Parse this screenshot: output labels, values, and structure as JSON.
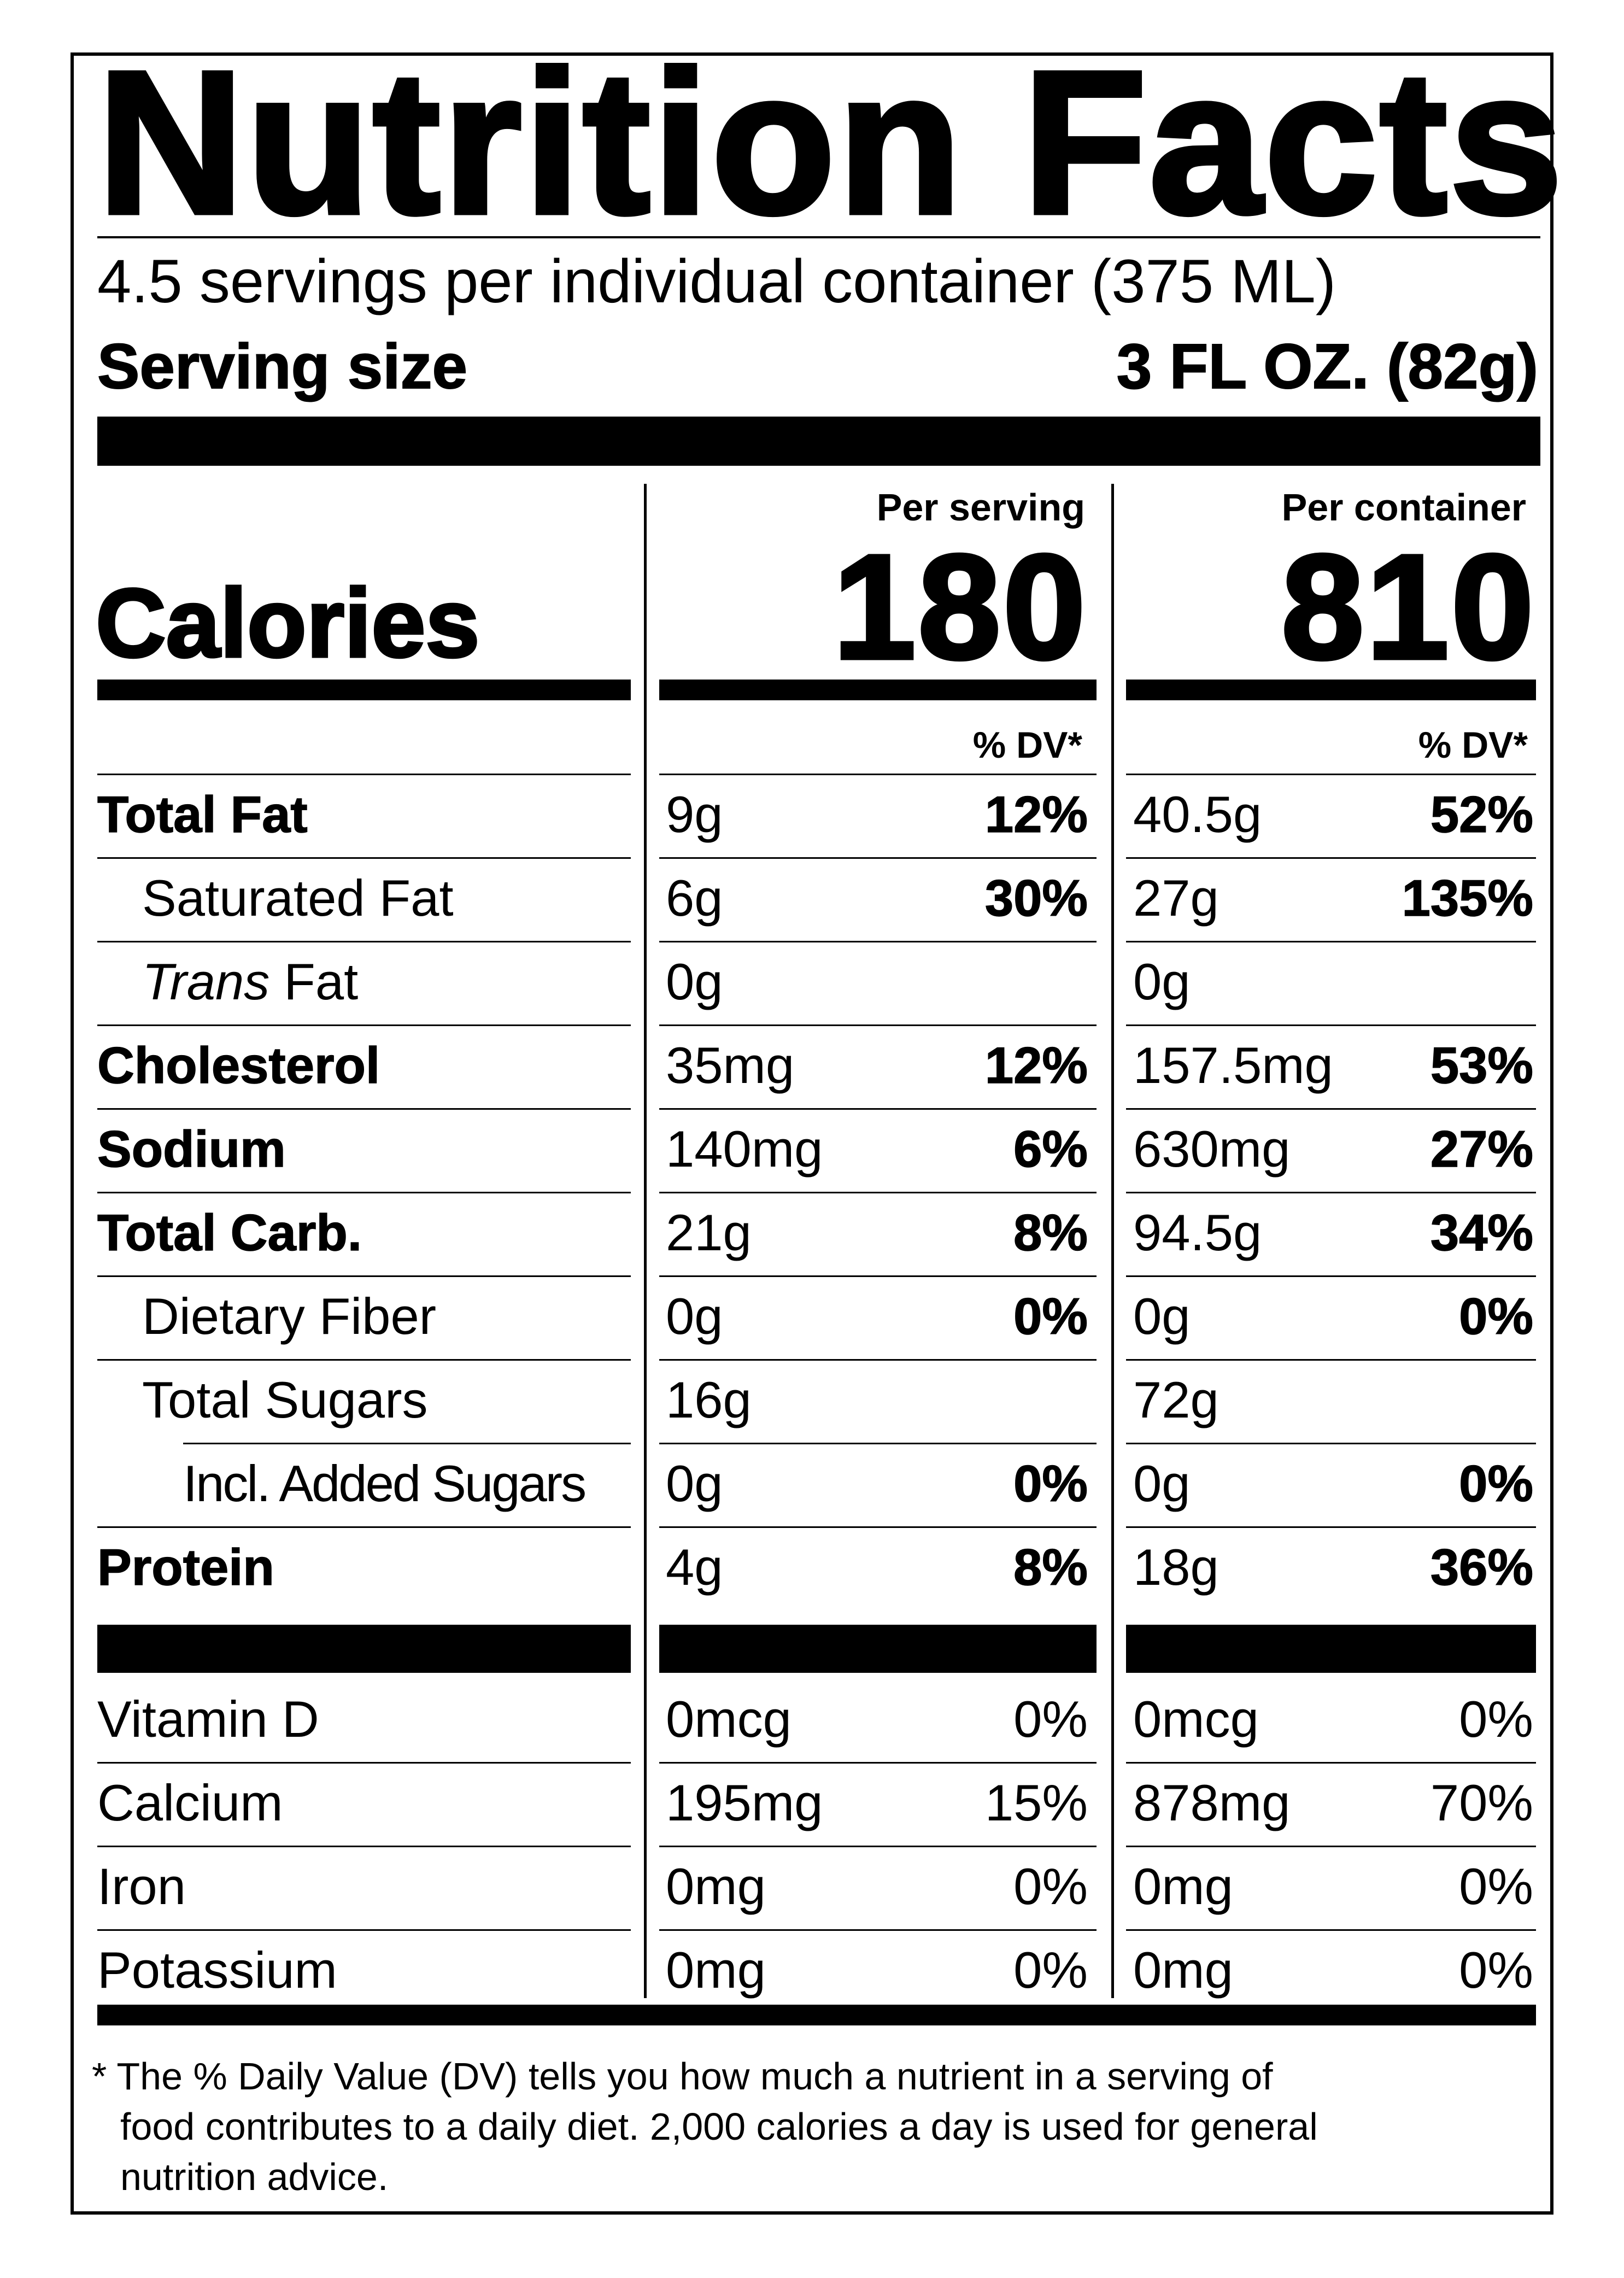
{
  "title": "Nutrition Facts",
  "servings_text": "4.5 servings per individual container (375 ML)",
  "serving_size": {
    "label": "Serving size",
    "value": "3 FL OZ. (82g)"
  },
  "columns": {
    "per_serving": {
      "heading": "Per serving",
      "calories": "180",
      "dv_heading": "% DV*"
    },
    "per_container": {
      "heading": "Per container",
      "calories": "810",
      "dv_heading": "% DV*"
    }
  },
  "calories_label": "Calories",
  "nutrients": [
    {
      "label": "Total Fat",
      "style": "bold",
      "indent": 0,
      "serving_amount": "9g",
      "serving_dv": "12%",
      "container_amount": "40.5g",
      "container_dv": "52%"
    },
    {
      "label": "Saturated Fat",
      "style": "normal",
      "indent": 1,
      "serving_amount": "6g",
      "serving_dv": "30%",
      "container_amount": "27g",
      "container_dv": "135%"
    },
    {
      "label_italic": "Trans",
      "label_rest": " Fat",
      "style": "normal",
      "indent": 1,
      "serving_amount": "0g",
      "serving_dv": "",
      "container_amount": "0g",
      "container_dv": ""
    },
    {
      "label": "Cholesterol",
      "style": "bold",
      "indent": 0,
      "serving_amount": "35mg",
      "serving_dv": "12%",
      "container_amount": "157.5mg",
      "container_dv": "53%"
    },
    {
      "label": "Sodium",
      "style": "bold",
      "indent": 0,
      "serving_amount": "140mg",
      "serving_dv": "6%",
      "container_amount": "630mg",
      "container_dv": "27%"
    },
    {
      "label": "Total Carb.",
      "style": "bold",
      "indent": 0,
      "serving_amount": "21g",
      "serving_dv": "8%",
      "container_amount": "94.5g",
      "container_dv": "34%"
    },
    {
      "label": "Dietary Fiber",
      "style": "normal",
      "indent": 1,
      "serving_amount": "0g",
      "serving_dv": "0%",
      "container_amount": "0g",
      "container_dv": "0%"
    },
    {
      "label": "Total Sugars",
      "style": "normal",
      "indent": 1,
      "serving_amount": "16g",
      "serving_dv": "",
      "container_amount": "72g",
      "container_dv": ""
    },
    {
      "label": "Incl. Added Sugars",
      "style": "normal",
      "indent": 2,
      "serving_amount": "0g",
      "serving_dv": "0%",
      "container_amount": "0g",
      "container_dv": "0%"
    },
    {
      "label": "Protein",
      "style": "bold",
      "indent": 0,
      "serving_amount": "4g",
      "serving_dv": "8%",
      "container_amount": "18g",
      "container_dv": "36%"
    }
  ],
  "vitamins": [
    {
      "label": "Vitamin D",
      "serving_amount": "0mcg",
      "serving_dv": "0%",
      "container_amount": "0mcg",
      "container_dv": "0%"
    },
    {
      "label": "Calcium",
      "serving_amount": "195mg",
      "serving_dv": "15%",
      "container_amount": "878mg",
      "container_dv": "70%"
    },
    {
      "label": "Iron",
      "serving_amount": "0mg",
      "serving_dv": "0%",
      "container_amount": "0mg",
      "container_dv": "0%"
    },
    {
      "label": "Potassium",
      "serving_amount": "0mg",
      "serving_dv": "0%",
      "container_amount": "0mg",
      "container_dv": "0%"
    }
  ],
  "footnote": {
    "line1": "* The % Daily Value (DV) tells you how much a nutrient in a serving of",
    "line2": "food contributes to a daily diet. 2,000 calories a day is used for general",
    "line3": "nutrition advice."
  }
}
